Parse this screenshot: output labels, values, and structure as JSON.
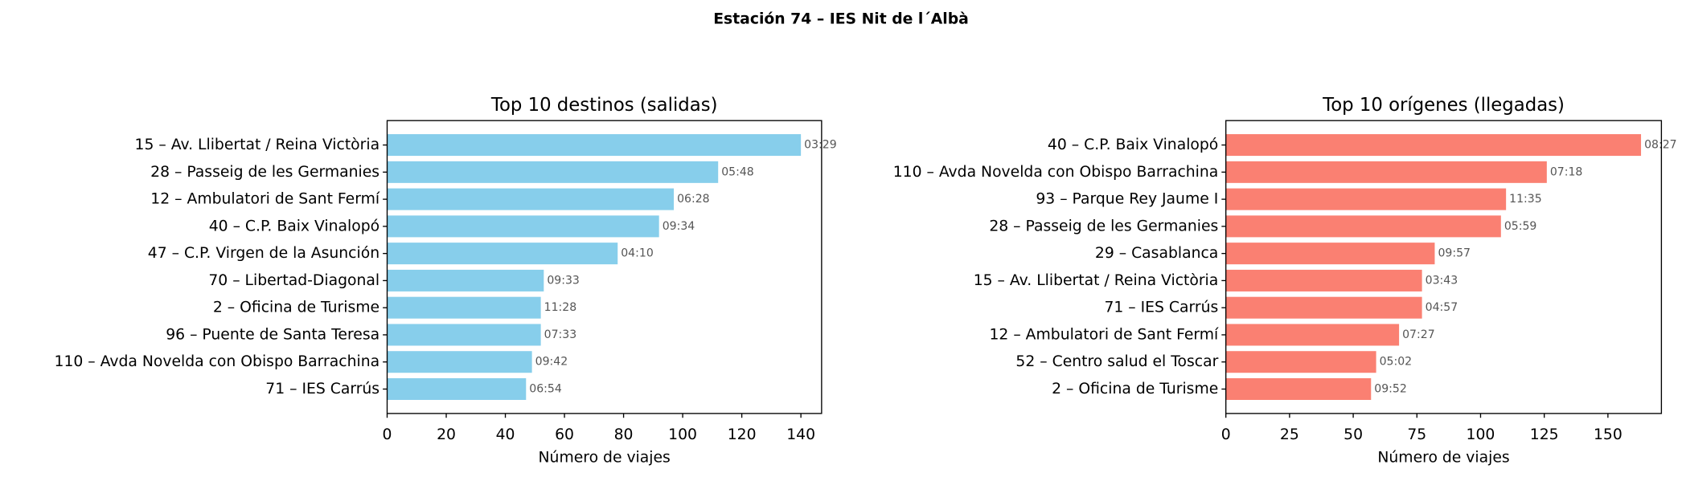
{
  "title": "Estación 74 – IES Nit de l´Albà",
  "chart_data": [
    {
      "type": "barh",
      "title": "Top 10 destinos (salidas)",
      "xlabel": "Número de viajes",
      "color": "#87ceeb",
      "categories": [
        "15 – Av. Llibertat / Reina Victòria",
        "28 – Passeig de les Germanies",
        "12 – Ambulatori de Sant Fermí",
        "40 – C.P. Baix Vinalopó",
        "47 – C.P. Virgen de la Asunción",
        "70 – Libertad-Diagonal",
        "2 – Oficina de Turisme",
        "96 – Puente de Santa Teresa",
        "110 – Avda Novelda con Obispo Barrachina",
        "71 – IES Carrús"
      ],
      "values": [
        140,
        112,
        97,
        92,
        78,
        53,
        52,
        52,
        49,
        47
      ],
      "annotations": [
        "03:29",
        "05:48",
        "06:28",
        "09:34",
        "04:10",
        "09:33",
        "11:28",
        "07:33",
        "09:42",
        "06:54"
      ],
      "xlim": [
        0,
        147
      ],
      "xticks": [
        0,
        20,
        40,
        60,
        80,
        100,
        120,
        140
      ]
    },
    {
      "type": "barh",
      "title": "Top 10 orígenes (llegadas)",
      "xlabel": "Número de viajes",
      "color": "#fa8072",
      "categories": [
        "40 – C.P. Baix Vinalopó",
        "110 – Avda Novelda con Obispo Barrachina",
        "93 – Parque Rey Jaume I",
        "28 – Passeig de les Germanies",
        "29 – Casablanca",
        "15 – Av. Llibertat / Reina Victòria",
        "71 – IES Carrús",
        "12 – Ambulatori de Sant Fermí",
        "52 – Centro salud el Toscar",
        "2 – Oficina de Turisme"
      ],
      "values": [
        163,
        126,
        110,
        108,
        82,
        77,
        77,
        68,
        59,
        57
      ],
      "annotations": [
        "08:27",
        "07:18",
        "11:35",
        "05:59",
        "09:57",
        "03:43",
        "04:57",
        "07:27",
        "05:02",
        "09:52"
      ],
      "xlim": [
        0,
        171
      ],
      "xticks": [
        0,
        25,
        50,
        75,
        100,
        125,
        150
      ]
    }
  ]
}
